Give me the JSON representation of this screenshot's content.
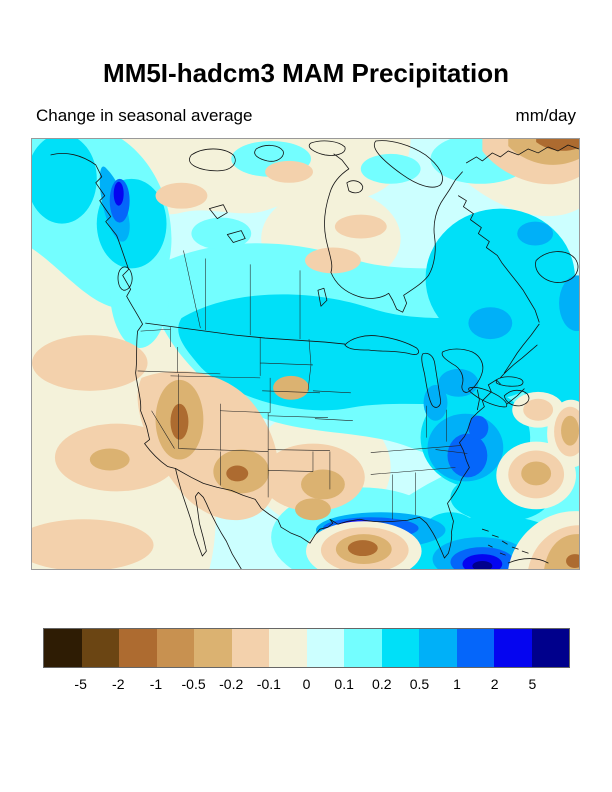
{
  "header": {
    "title": "MM5I-hadcm3 MAM Precipitation",
    "subtitle": "Change in seasonal average",
    "units": "mm/day"
  },
  "map": {
    "region": "North America",
    "description": "Filled contour map of change in seasonal average MAM precipitation (mm/day); browns = drying, blues = wetting"
  },
  "colorbar": {
    "labels": [
      "-5",
      "-2",
      "-1",
      "-0.5",
      "-0.2",
      "-0.1",
      "0",
      "0.1",
      "0.2",
      "0.5",
      "1",
      "2",
      "5"
    ],
    "colors": [
      "#2e1c04",
      "#6b4513",
      "#ad6b30",
      "#c89150",
      "#dbb271",
      "#f3d1ac",
      "#f4f2da",
      "#ccffff",
      "#73feff",
      "#00e0f8",
      "#00b0f8",
      "#0566fa",
      "#0505f0",
      "#00008c"
    ]
  },
  "chart_data": {
    "type": "heatmap",
    "title": "MM5I-hadcm3 MAM Precipitation",
    "subtitle": "Change in seasonal average",
    "units": "mm/day",
    "region": "North America",
    "legend_position": "bottom",
    "colorbar_levels": [
      -5,
      -2,
      -1,
      -0.5,
      -0.2,
      -0.1,
      0,
      0.1,
      0.2,
      0.5,
      1,
      2,
      5
    ],
    "colorbar_colors": [
      "#2e1c04",
      "#6b4513",
      "#ad6b30",
      "#c89150",
      "#dbb271",
      "#f3d1ac",
      "#f4f2da",
      "#ccffff",
      "#73feff",
      "#00e0f8",
      "#00b0f8",
      "#0566fa",
      "#0505f0",
      "#00008c"
    ],
    "notable_features": [
      {
        "area": "Southeast Alaska panhandle",
        "value_mm_day": "+1 to +2"
      },
      {
        "area": "Central and eastern Canada",
        "value_mm_day": "+0.2 to +0.5"
      },
      {
        "area": "Arctic / northern Canada band",
        "value_mm_day": "-0.1 to +0.1"
      },
      {
        "area": "Pacific Ocean off California",
        "value_mm_day": "-0.1 to -0.5"
      },
      {
        "area": "Southwest US / Great Basin / Four Corners",
        "value_mm_day": "-0.5 to -2"
      },
      {
        "area": "Central Plains (Kansas-Missouri)",
        "value_mm_day": "-0.2 to -1"
      },
      {
        "area": "Ohio Valley and Southeast US",
        "value_mm_day": "+0.5 to +2"
      },
      {
        "area": "Louisiana Gulf Coast",
        "value_mm_day": "+2 to +5"
      },
      {
        "area": "Western Gulf of Mexico",
        "value_mm_day": "-1 to -2"
      },
      {
        "area": "Subtropical Atlantic blobs",
        "value_mm_day": "-0.5 to -1"
      },
      {
        "area": "Southern Greenland tip",
        "value_mm_day": "-1 to -5"
      },
      {
        "area": "Caribbean / SE corner",
        "value_mm_day": "-1 to -2 with +2 to +5 streaks"
      }
    ]
  }
}
